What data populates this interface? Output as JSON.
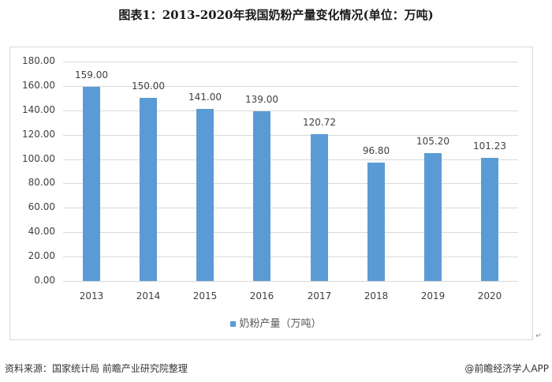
{
  "title": "图表1：2013-2020年我国奶粉产量变化情况(单位：万吨)",
  "legend": {
    "label": "奶粉产量（万吨）",
    "color": "#5b9bd5"
  },
  "footer": {
    "source": "资料来源：国家统计局 前瞻产业研究院整理",
    "credit": "@前瞻经济学人APP"
  },
  "chart_data": {
    "type": "bar",
    "title": "图表1：2013-2020年我国奶粉产量变化情况(单位：万吨)",
    "xlabel": "",
    "ylabel": "",
    "categories": [
      "2013",
      "2014",
      "2015",
      "2016",
      "2017",
      "2018",
      "2019",
      "2020"
    ],
    "series": [
      {
        "name": "奶粉产量（万吨）",
        "values": [
          159.0,
          150.0,
          141.0,
          139.0,
          120.72,
          96.8,
          105.2,
          101.23
        ],
        "color": "#5b9bd5"
      }
    ],
    "data_labels": [
      "159.00",
      "150.00",
      "141.00",
      "139.00",
      "120.72",
      "96.80",
      "105.20",
      "101.23"
    ],
    "ylim": [
      0,
      180
    ],
    "yticks": [
      "0.00",
      "20.00",
      "40.00",
      "60.00",
      "80.00",
      "100.00",
      "120.00",
      "140.00",
      "160.00",
      "180.00"
    ],
    "grid": true,
    "legend_position": "bottom"
  }
}
